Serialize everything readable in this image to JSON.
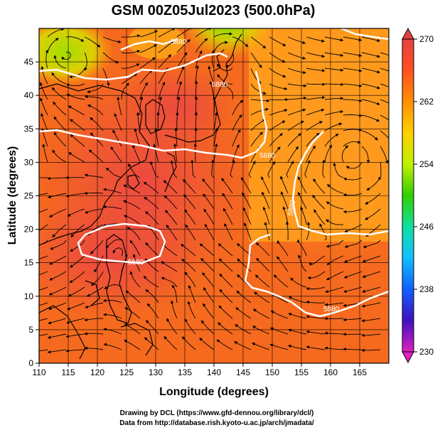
{
  "title": "GSM 00Z05Jul2023 (500.0hPa)",
  "x_axis": {
    "label": "Longitude (degrees)",
    "ticks": [
      "110",
      "115",
      "120",
      "125",
      "130",
      "135",
      "140",
      "145",
      "150",
      "155",
      "160",
      "165"
    ],
    "range": [
      110,
      170
    ]
  },
  "y_axis": {
    "label": "Latitude  (degrees)",
    "ticks": [
      "0",
      "5",
      "10",
      "15",
      "20",
      "25",
      "30",
      "35",
      "40",
      "45"
    ],
    "range": [
      0,
      50
    ]
  },
  "colorbar": {
    "ticks": [
      "230",
      "238",
      "246",
      "254",
      "262",
      "270"
    ],
    "range": [
      230,
      270
    ],
    "colors": [
      "#e020c0",
      "#4010c0",
      "#1060ff",
      "#10c0ff",
      "#10e0a0",
      "#30d000",
      "#c0f000",
      "#ffd000",
      "#ff9000",
      "#ff5020",
      "#e84040"
    ]
  },
  "contours": {
    "labels": [
      "5880",
      "5880",
      "5880",
      "5880",
      "5880",
      "5880"
    ],
    "color": "#ffffff"
  },
  "credits": {
    "line1": "Drawing by DCL (https://www.gfd-dennou.org/library/dcl/)",
    "line2": "Data from http://database.rish.kyoto-u.ac.jp/arch/jmadata/"
  }
}
